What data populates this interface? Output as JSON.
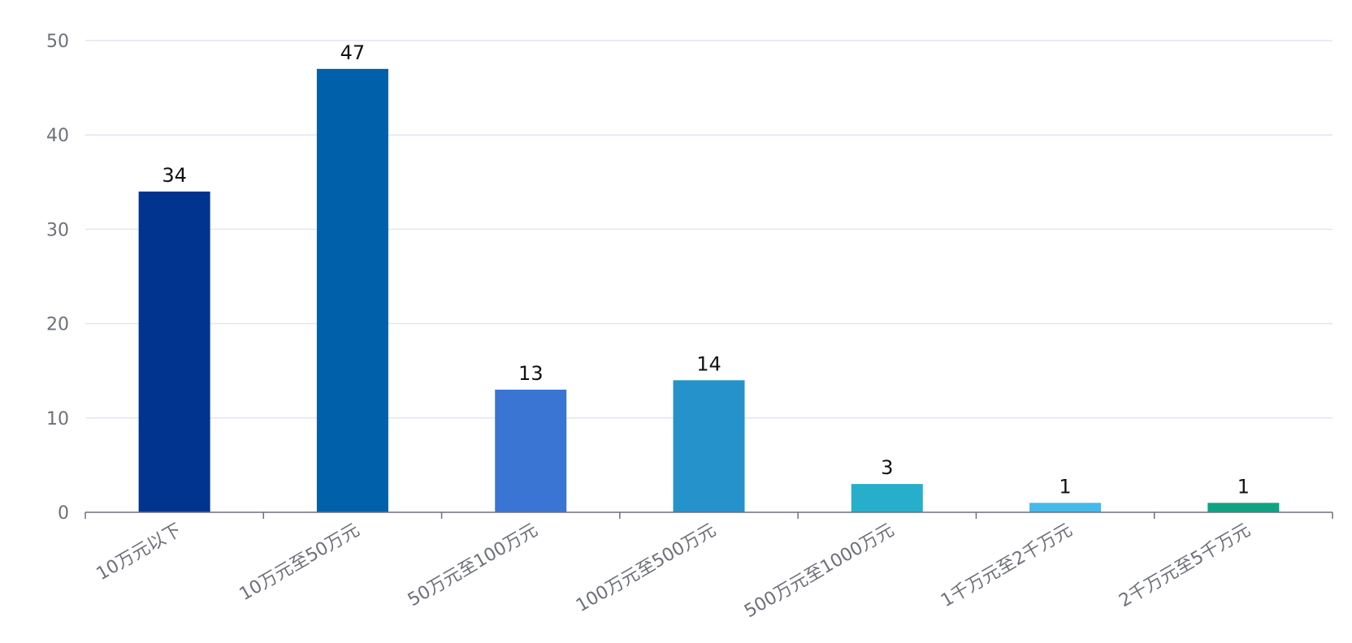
{
  "chart_data": {
    "type": "bar",
    "categories": [
      "10万元以下",
      "10万元至50万元",
      "50万元至100万元",
      "100万元至500万元",
      "500万元至1000万元",
      "1千万元至2千万元",
      "2千万元至5千万元"
    ],
    "values": [
      34,
      47,
      13,
      14,
      3,
      1,
      1
    ],
    "colors": [
      "#00348f",
      "#0061aa",
      "#3b75d3",
      "#2692cb",
      "#26aecb",
      "#45b9eb",
      "#0fa384"
    ],
    "ylim": [
      0,
      50
    ],
    "yticks": [
      0,
      10,
      20,
      30,
      40,
      50
    ],
    "grid": true,
    "gridColor": "#e0e6f1",
    "axisColor": "#6e7079",
    "title": "",
    "xlabel": "",
    "ylabel": ""
  }
}
